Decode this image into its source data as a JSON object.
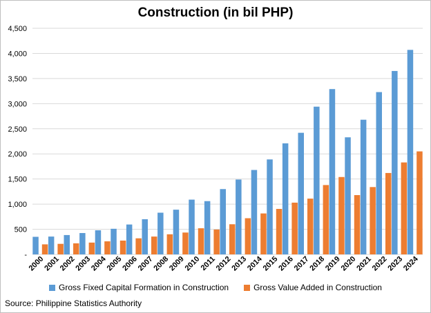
{
  "chart_data": {
    "type": "bar",
    "title": "Construction (in bil PHP)",
    "xlabel": "",
    "ylabel": "",
    "ylim": [
      0,
      4500
    ],
    "yticks": [
      0,
      500,
      1000,
      1500,
      2000,
      2500,
      3000,
      3500,
      4000,
      4500
    ],
    "ytick_labels": [
      "-",
      "500",
      "1,000",
      "1,500",
      "2,000",
      "2,500",
      "3,000",
      "3,500",
      "4,000",
      "4,500"
    ],
    "grid": true,
    "legend_position": "bottom",
    "categories": [
      "2000",
      "2001",
      "2002",
      "2003",
      "2004",
      "2005",
      "2006",
      "2007",
      "2008",
      "2009",
      "2010",
      "2011",
      "2012",
      "2013",
      "2014",
      "2015",
      "2016",
      "2017",
      "2018",
      "2019",
      "2020",
      "2021",
      "2022",
      "2023",
      "2024"
    ],
    "series": [
      {
        "name": "Gross Fixed Capital Formation in Construction",
        "color": "#5b9bd5",
        "values": [
          350,
          355,
          385,
          425,
          480,
          510,
          595,
          700,
          830,
          890,
          1090,
          1060,
          1300,
          1490,
          1680,
          1890,
          2210,
          2420,
          2940,
          3290,
          2330,
          2680,
          3230,
          3650,
          4070
        ]
      },
      {
        "name": "Gross Value Added in Construction",
        "color": "#ed7d31",
        "values": [
          200,
          210,
          220,
          235,
          260,
          275,
          320,
          355,
          400,
          435,
          520,
          495,
          600,
          720,
          815,
          905,
          1030,
          1110,
          1380,
          1540,
          1180,
          1340,
          1620,
          1830,
          2050
        ]
      }
    ]
  },
  "source": "Source: Philippine Statistics Authority"
}
